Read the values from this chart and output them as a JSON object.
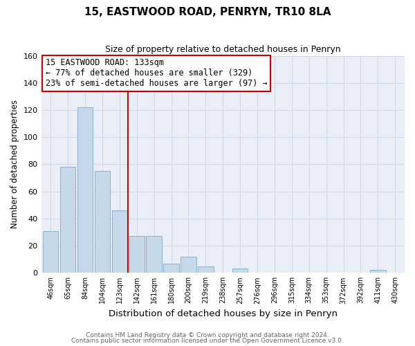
{
  "title": "15, EASTWOOD ROAD, PENRYN, TR10 8LA",
  "subtitle": "Size of property relative to detached houses in Penryn",
  "xlabel": "Distribution of detached houses by size in Penryn",
  "ylabel": "Number of detached properties",
  "bar_labels": [
    "46sqm",
    "65sqm",
    "84sqm",
    "104sqm",
    "123sqm",
    "142sqm",
    "161sqm",
    "180sqm",
    "200sqm",
    "219sqm",
    "238sqm",
    "257sqm",
    "276sqm",
    "296sqm",
    "315sqm",
    "334sqm",
    "353sqm",
    "372sqm",
    "392sqm",
    "411sqm",
    "430sqm"
  ],
  "bar_values": [
    31,
    78,
    122,
    75,
    46,
    27,
    27,
    7,
    12,
    5,
    0,
    3,
    0,
    0,
    0,
    0,
    0,
    0,
    0,
    2,
    0
  ],
  "bar_color": "#c6d9ea",
  "bar_edge_color": "#8ab0cc",
  "vline_color": "#cc0000",
  "annotation_text": "15 EASTWOOD ROAD: 133sqm\n← 77% of detached houses are smaller (329)\n23% of semi-detached houses are larger (97) →",
  "annotation_box_edge": "#cc0000",
  "annotation_fontsize": 8.5,
  "ylim": [
    0,
    160
  ],
  "yticks": [
    0,
    20,
    40,
    60,
    80,
    100,
    120,
    140,
    160
  ],
  "footer_line1": "Contains HM Land Registry data © Crown copyright and database right 2024.",
  "footer_line2": "Contains public sector information licensed under the Open Government Licence v3.0.",
  "bg_color": "#eaeff7",
  "grid_color": "#d0d8e8",
  "title_fontsize": 11,
  "subtitle_fontsize": 9,
  "xlabel_fontsize": 9.5,
  "ylabel_fontsize": 8.5,
  "footer_fontsize": 6.5
}
